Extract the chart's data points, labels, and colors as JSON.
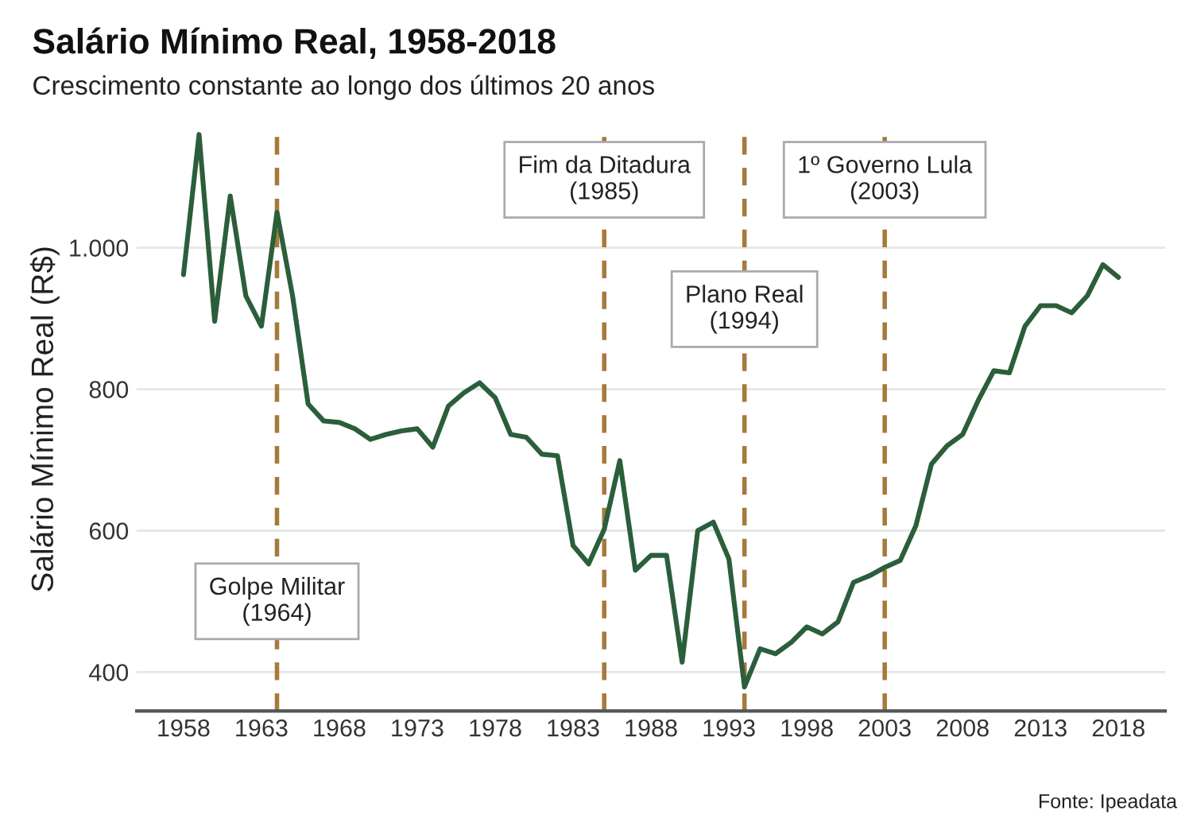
{
  "chart_data": {
    "type": "line",
    "title": "Salário Mínimo Real, 1958-2018",
    "subtitle": "Crescimento constante ao longo dos últimos 20 anos",
    "ylabel": "Salário Mínimo Real (R$)",
    "x": [
      1958,
      1959,
      1960,
      1961,
      1962,
      1963,
      1964,
      1965,
      1966,
      1967,
      1968,
      1969,
      1970,
      1971,
      1972,
      1973,
      1974,
      1975,
      1976,
      1977,
      1978,
      1979,
      1980,
      1981,
      1982,
      1983,
      1984,
      1985,
      1986,
      1987,
      1988,
      1989,
      1990,
      1991,
      1992,
      1993,
      1994,
      1995,
      1996,
      1997,
      1998,
      1999,
      2000,
      2001,
      2002,
      2003,
      2004,
      2005,
      2006,
      2007,
      2008,
      2009,
      2010,
      2011,
      2012,
      2013,
      2014,
      2015,
      2016,
      2017,
      2018
    ],
    "series": [
      {
        "color": "#2b5e3b",
        "values": [
          962,
          1160,
          896,
          1073,
          932,
          889,
          1050,
          932,
          779,
          755,
          753,
          744,
          729,
          736,
          741,
          744,
          718,
          776,
          795,
          809,
          788,
          736,
          732,
          708,
          706,
          579,
          553,
          602,
          699,
          544,
          565,
          565,
          414,
          600,
          612,
          560,
          379,
          433,
          426,
          442,
          464,
          454,
          471,
          527,
          536,
          548,
          558,
          607,
          694,
          720,
          736,
          784,
          826,
          823,
          889,
          918,
          918,
          908,
          932,
          976,
          958
        ]
      }
    ],
    "xlim": [
      1955,
      2021
    ],
    "ylim": [
      345,
      1170
    ],
    "xticks": [
      1958,
      1963,
      1968,
      1973,
      1978,
      1983,
      1988,
      1993,
      1998,
      2003,
      2008,
      2013,
      2018
    ],
    "yticks": [
      400,
      600,
      800,
      {
        "value": 1000,
        "label": "1.000"
      }
    ],
    "grid": "y",
    "line_style": "solid",
    "marker": "none",
    "ref_lines": [
      {
        "axis": "x",
        "value": 1964,
        "color": "#a67a3c",
        "line_style": "dashed"
      },
      {
        "axis": "x",
        "value": 1985,
        "color": "#a67a3c",
        "line_style": "dashed"
      },
      {
        "axis": "x",
        "value": 1994,
        "color": "#a67a3c",
        "line_style": "dashed"
      },
      {
        "axis": "x",
        "value": 2003,
        "color": "#a67a3c",
        "line_style": "dashed"
      }
    ],
    "annotations": [
      {
        "text": "Golpe Militar\n(1964)",
        "x": 1964,
        "y": 500
      },
      {
        "text": "Fim da Ditadura\n(1985)",
        "x": 1985,
        "y": 1096
      },
      {
        "text": "Plano Real\n(1994)",
        "x": 1994,
        "y": 913
      },
      {
        "text": "1º Governo Lula\n(2003)",
        "x": 2003,
        "y": 1096
      },
      "Fonte: Ipeadata"
    ]
  }
}
